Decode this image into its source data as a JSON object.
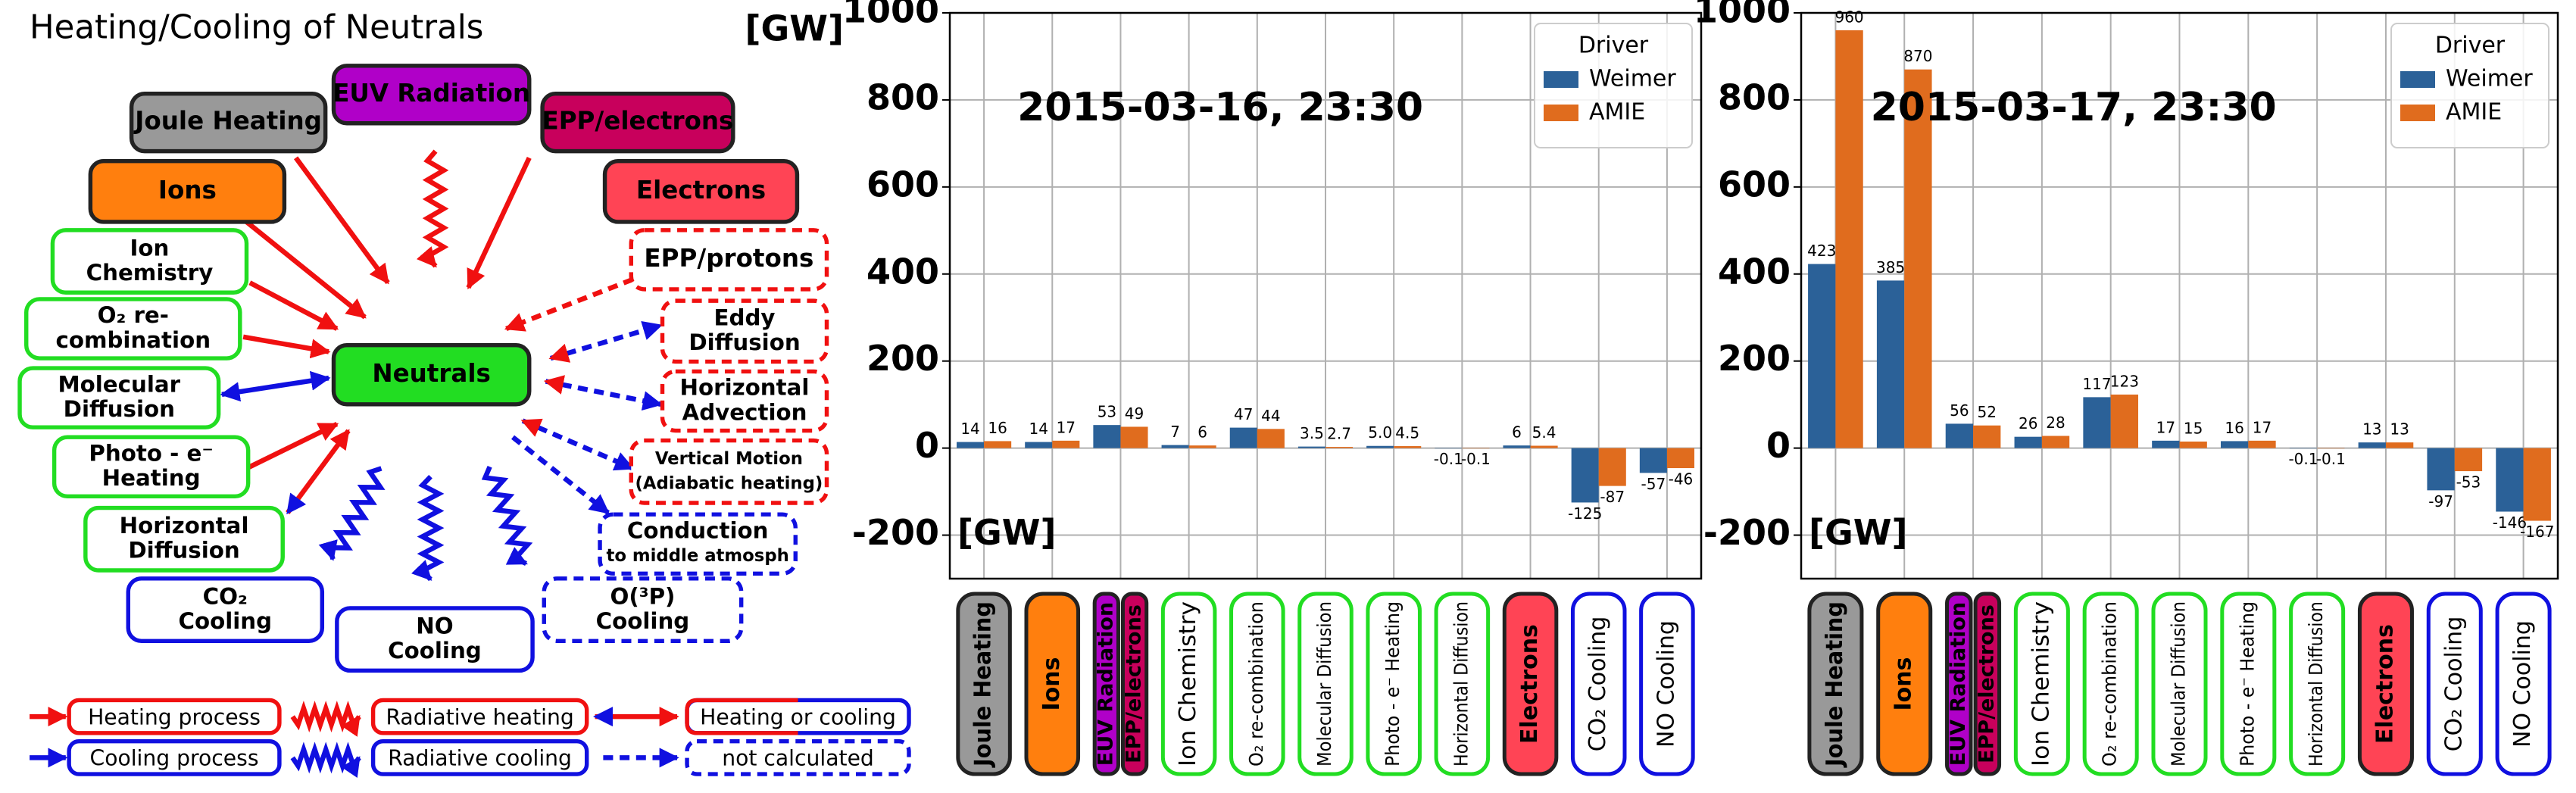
{
  "diagram": {
    "title": "Heating/Cooling of Neutrals",
    "nodes": [
      {
        "lines": [
          "Joule Heating"
        ]
      },
      {
        "lines": [
          "EUV Radiation"
        ]
      },
      {
        "lines": [
          "EPP/electrons"
        ]
      },
      {
        "lines": [
          "Ions"
        ]
      },
      {
        "lines": [
          "Electrons"
        ]
      },
      {
        "lines": [
          "Ion",
          "Chemistry"
        ]
      },
      {
        "lines": [
          "EPP/protons"
        ]
      },
      {
        "lines": [
          "O₂ re-",
          "combination"
        ]
      },
      {
        "lines": [
          "Eddy",
          "Diffusion"
        ]
      },
      {
        "lines": [
          "Neutrals"
        ]
      },
      {
        "lines": [
          "Molecular",
          "Diffusion"
        ]
      },
      {
        "lines": [
          "Horizontal",
          "Advection"
        ]
      },
      {
        "lines": [
          "Photo - e⁻",
          "Heating"
        ]
      },
      {
        "lines": [
          "Vertical Motion",
          "(Adiabatic heating)"
        ]
      },
      {
        "lines": [
          "Horizontal",
          "Diffusion"
        ]
      },
      {
        "lines": [
          "Conduction",
          "to middle atmosph"
        ]
      },
      {
        "lines": [
          "CO₂",
          "Cooling"
        ]
      },
      {
        "lines": [
          "NO",
          "Cooling"
        ]
      },
      {
        "lines": [
          "O(³P)",
          "Cooling"
        ]
      }
    ],
    "legend": [
      "Heating process",
      "Radiative heating",
      "Heating or cooling",
      "Cooling process",
      "Radiative cooling",
      "not calculated"
    ]
  },
  "chart_data": [
    {
      "type": "bar",
      "annotation": "2015-03-16, 23:30",
      "ylabel": "[GW]",
      "unit_label": "[GW]",
      "categories": [
        "Joule Heating",
        "Ions",
        [
          "EUV Radiation",
          "EPP/electrons"
        ],
        "Ion Chemistry",
        "O₂ re-combination",
        "Molecular Diffusion",
        "Photo - e⁻ Heating",
        "Horizontal Diffusion",
        "Electrons",
        "CO₂ Cooling",
        "NO Cooling"
      ],
      "series": [
        {
          "name": "Weimer",
          "color": "#2b6198",
          "values": [
            14,
            14,
            53,
            7,
            47,
            3.5,
            5,
            -0.1,
            6,
            -125,
            -57
          ],
          "value_labels": [
            "14",
            "14",
            "53",
            "7",
            "47",
            "3.5",
            "5.0",
            "-0.1",
            "6",
            "-125",
            "-57"
          ]
        },
        {
          "name": "AMIE",
          "color": "#e06c1e",
          "values": [
            16,
            17,
            49,
            6,
            44,
            2.7,
            4.5,
            -0.1,
            5.4,
            -87,
            -46
          ],
          "value_labels": [
            "16",
            "17",
            "49",
            "6",
            "44",
            "2.7",
            "4.5",
            "-0.1",
            "5.4",
            "-87",
            "-46"
          ]
        }
      ],
      "legend_title": "Driver",
      "legend_position": "upper right",
      "ylim": [
        -300,
        1000
      ],
      "yticks": [
        -200,
        0,
        200,
        400,
        600,
        800,
        1000
      ],
      "grid": true
    },
    {
      "type": "bar",
      "annotation": "2015-03-17, 23:30",
      "unit_label": "[GW]",
      "categories": [
        "Joule Heating",
        "Ions",
        [
          "EUV Radiation",
          "EPP/electrons"
        ],
        "Ion Chemistry",
        "O₂ re-combination",
        "Molecular Diffusion",
        "Photo - e⁻ Heating",
        "Horizontal Diffusion",
        "Electrons",
        "CO₂ Cooling",
        "NO Cooling"
      ],
      "series": [
        {
          "name": "Weimer",
          "color": "#2b6198",
          "values": [
            423,
            385,
            56,
            26,
            117,
            17,
            16,
            -0.1,
            13,
            -97,
            -146
          ],
          "value_labels": [
            "423",
            "385",
            "56",
            "26",
            "117",
            "17",
            "16",
            "-0.1",
            "13",
            "-97",
            "-146"
          ]
        },
        {
          "name": "AMIE",
          "color": "#e06c1e",
          "values": [
            960,
            870,
            52,
            28,
            123,
            15,
            17,
            -0.1,
            13,
            -53,
            -167
          ],
          "value_labels": [
            "960",
            "870",
            "52",
            "28",
            "123",
            "15",
            "17",
            "-0.1",
            "13",
            "-53",
            "-167"
          ]
        }
      ],
      "legend_title": "Driver",
      "legend_position": "upper right",
      "ylim": [
        -300,
        1000
      ],
      "yticks": [
        -200,
        0,
        200,
        400,
        600,
        800,
        1000
      ],
      "grid": true
    }
  ]
}
